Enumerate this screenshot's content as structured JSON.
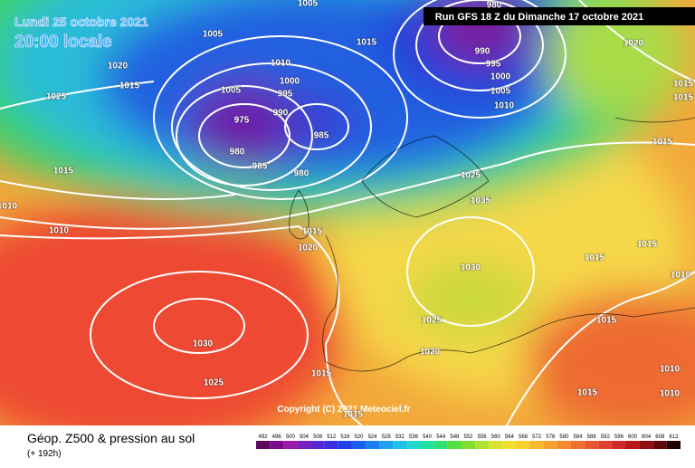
{
  "header": {
    "date": "Lundi 25 octobre 2021",
    "time": "20:00 locale",
    "run": "Run GFS 18 Z du Dimanche 17 octobre 2021"
  },
  "copyright": "Copyright (C) 2021 Meteociel.fr",
  "footer": {
    "title": "Géop. Z500 & pression au sol",
    "range": "(+ 192h)"
  },
  "isobar_labels": [
    1005,
    1005,
    1015,
    1020,
    1015,
    1025,
    1010,
    1005,
    1000,
    995,
    990,
    975,
    985,
    980,
    985,
    980,
    1015,
    1010,
    1010,
    1015,
    1020,
    980,
    990,
    995,
    1000,
    1005,
    1010,
    1020,
    1015,
    1015,
    1015,
    1025,
    1035,
    1015,
    1015,
    1010,
    1030,
    1025,
    1015,
    1020,
    1030,
    1015,
    1010,
    1025,
    1015,
    1010,
    1015
  ],
  "scale": {
    "labels": [
      492,
      496,
      500,
      504,
      508,
      512,
      516,
      520,
      524,
      528,
      532,
      536,
      540,
      544,
      548,
      552,
      556,
      560,
      564,
      568,
      572,
      576,
      580,
      584,
      588,
      592,
      596,
      600,
      604,
      608,
      612
    ],
    "colors": [
      "#5a0a5a",
      "#7a0a8a",
      "#9a1aaa",
      "#7a20c0",
      "#5a28d0",
      "#3a30e0",
      "#2040e8",
      "#1a60f0",
      "#1a80f0",
      "#20a0f0",
      "#20c0e8",
      "#20d8d0",
      "#20e0a0",
      "#30e070",
      "#50e040",
      "#80e030",
      "#b0e030",
      "#d8e030",
      "#f0e030",
      "#f8d030",
      "#f8b830",
      "#f8a030",
      "#f88830",
      "#f07030",
      "#e85830",
      "#e04030",
      "#d02828",
      "#b81818",
      "#901010",
      "#600808",
      "#200000"
    ]
  }
}
